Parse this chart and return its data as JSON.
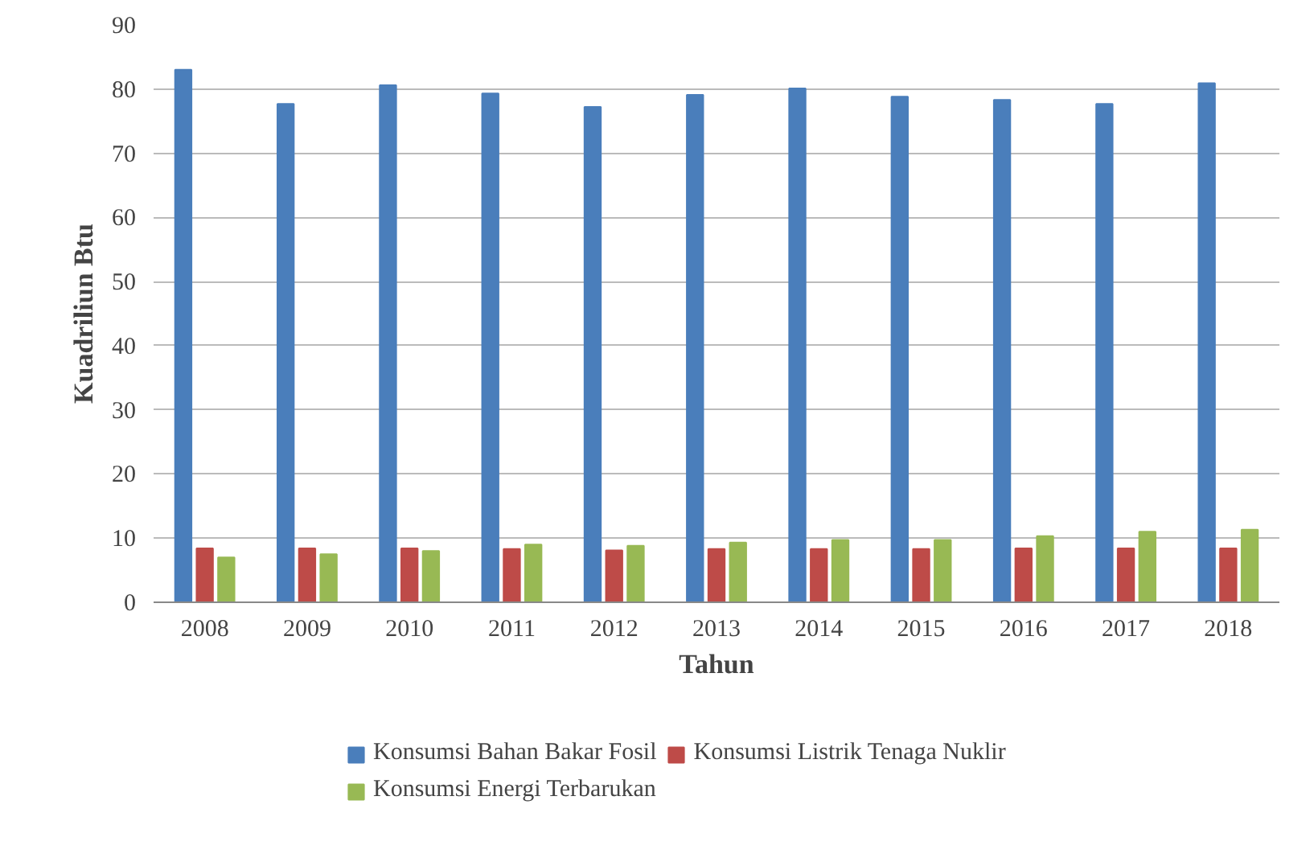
{
  "chart_data": {
    "type": "bar",
    "xlabel": "Tahun",
    "ylabel": "Kuadriliun Btu",
    "categories": [
      "2008",
      "2009",
      "2010",
      "2011",
      "2012",
      "2013",
      "2014",
      "2015",
      "2016",
      "2017",
      "2018"
    ],
    "series": [
      {
        "name": "Konsumsi Bahan Bakar Fosil",
        "color": "#4a7ebb",
        "values": [
          83.0,
          77.7,
          80.6,
          79.3,
          77.2,
          79.1,
          80.1,
          78.8,
          78.3,
          77.7,
          80.9
        ]
      },
      {
        "name": "Konsumsi Listrik Tenaga Nuklir",
        "color": "#be4b48",
        "values": [
          8.4,
          8.4,
          8.4,
          8.3,
          8.1,
          8.3,
          8.3,
          8.3,
          8.4,
          8.4,
          8.4
        ]
      },
      {
        "name": "Konsumsi Energi Terbarukan",
        "color": "#98b954",
        "values": [
          7.0,
          7.5,
          8.0,
          9.0,
          8.8,
          9.3,
          9.7,
          9.7,
          10.3,
          11.0,
          11.3
        ]
      }
    ],
    "ylim": [
      0,
      90
    ],
    "yticks": [
      0,
      10,
      20,
      30,
      40,
      50,
      60,
      70,
      80,
      90
    ],
    "grid": "y",
    "legend": "bottom"
  }
}
